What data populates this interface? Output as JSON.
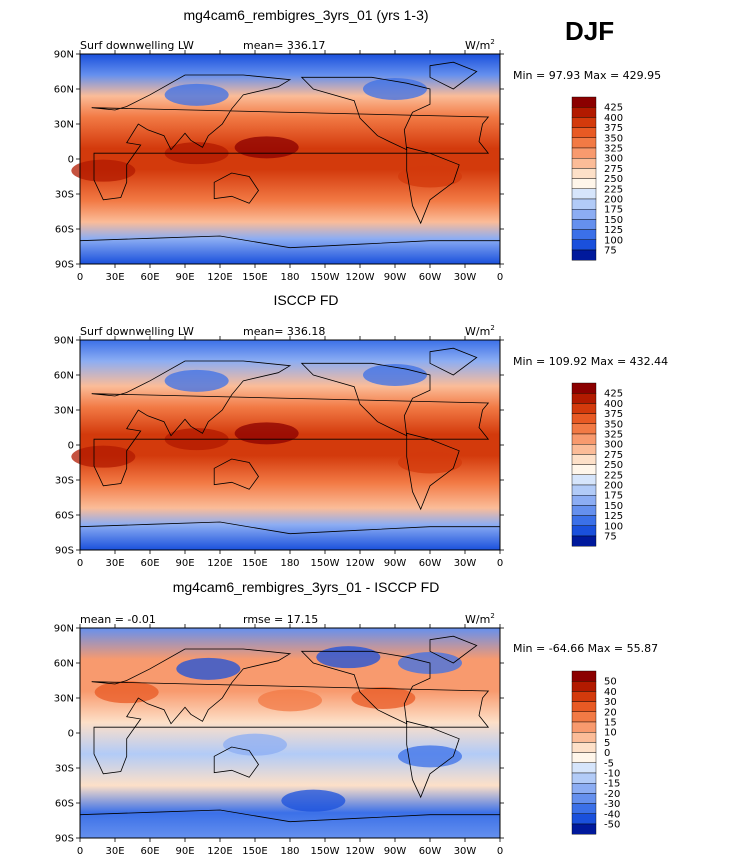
{
  "figure": {
    "season": "DJF",
    "lon_ticks": [
      "0",
      "30E",
      "60E",
      "90E",
      "120E",
      "150E",
      "180",
      "150W",
      "120W",
      "90W",
      "60W",
      "30W",
      "0"
    ],
    "lat_ticks": [
      "90N",
      "60N",
      "30N",
      "0",
      "30S",
      "60S",
      "90S"
    ]
  },
  "panels": [
    {
      "title": "mg4cam6_rembigres_3yrs_01 (yrs 1-3)",
      "left_label": "Surf downwelling LW",
      "center_label": "mean= 336.17",
      "units_label": "W/m",
      "units_sup": "2",
      "minmax_label": "Min =  97.93 Max = 429.95",
      "style": "field"
    },
    {
      "title": "ISCCP FD",
      "left_label": "Surf downwelling LW",
      "center_label": "mean= 336.18",
      "units_label": "W/m",
      "units_sup": "2",
      "minmax_label": "Min = 109.92 Max = 432.44",
      "style": "field"
    },
    {
      "title": "mg4cam6_rembigres_3yrs_01 - ISCCP FD",
      "left_label": "mean =  -0.01",
      "center_label": "rmse =  17.15",
      "units_label": "W/m",
      "units_sup": "2",
      "minmax_label": "Min = -64.66 Max =  55.87",
      "style": "diff"
    }
  ],
  "colorbars": [
    {
      "labels": [
        "425",
        "400",
        "375",
        "350",
        "325",
        "300",
        "275",
        "250",
        "225",
        "200",
        "175",
        "150",
        "125",
        "100",
        "75"
      ],
      "colors": [
        "#8b0000",
        "#b21a00",
        "#d33a0c",
        "#e85a24",
        "#f27a45",
        "#f89a6e",
        "#fbbc98",
        "#fde0c8",
        "#fff6ea",
        "#d6e5fb",
        "#b2cbf7",
        "#8cadf3",
        "#6590ee",
        "#3b70e8",
        "#1a50dc",
        "#00199c"
      ]
    },
    {
      "labels": [
        "425",
        "400",
        "375",
        "350",
        "325",
        "300",
        "275",
        "250",
        "225",
        "200",
        "175",
        "150",
        "125",
        "100",
        "75"
      ],
      "colors": [
        "#8b0000",
        "#b21a00",
        "#d33a0c",
        "#e85a24",
        "#f27a45",
        "#f89a6e",
        "#fbbc98",
        "#fde0c8",
        "#fff6ea",
        "#d6e5fb",
        "#b2cbf7",
        "#8cadf3",
        "#6590ee",
        "#3b70e8",
        "#1a50dc",
        "#00199c"
      ]
    },
    {
      "labels": [
        "50",
        "40",
        "30",
        "20",
        "15",
        "10",
        "5",
        "0",
        "-5",
        "-10",
        "-15",
        "-20",
        "-30",
        "-40",
        "-50"
      ],
      "colors": [
        "#8b0000",
        "#b21a00",
        "#d33a0c",
        "#e85a24",
        "#f27a45",
        "#f89a6e",
        "#fbbc98",
        "#fde0c8",
        "#fff6ea",
        "#d6e5fb",
        "#b2cbf7",
        "#8cadf3",
        "#6590ee",
        "#3b70e8",
        "#1a50dc",
        "#00199c"
      ]
    }
  ],
  "chart_data": [
    {
      "type": "heatmap",
      "title": "mg4cam6_rembigres_3yrs_01 (yrs 1-3)",
      "variable": "Surf downwelling LW",
      "units": "W/m2",
      "mean": 336.17,
      "min": 97.93,
      "max": 429.95,
      "x_range": [
        0,
        360
      ],
      "y_range": [
        -90,
        90
      ],
      "levels": [
        75,
        100,
        125,
        150,
        175,
        200,
        225,
        250,
        275,
        300,
        325,
        350,
        375,
        400,
        425
      ]
    },
    {
      "type": "heatmap",
      "title": "ISCCP FD",
      "variable": "Surf downwelling LW",
      "units": "W/m2",
      "mean": 336.18,
      "min": 109.92,
      "max": 432.44,
      "x_range": [
        0,
        360
      ],
      "y_range": [
        -90,
        90
      ],
      "levels": [
        75,
        100,
        125,
        150,
        175,
        200,
        225,
        250,
        275,
        300,
        325,
        350,
        375,
        400,
        425
      ]
    },
    {
      "type": "heatmap",
      "title": "mg4cam6_rembigres_3yrs_01 - ISCCP FD",
      "units": "W/m2",
      "mean": -0.01,
      "rmse": 17.15,
      "min": -64.66,
      "max": 55.87,
      "x_range": [
        0,
        360
      ],
      "y_range": [
        -90,
        90
      ],
      "levels": [
        -50,
        -40,
        -30,
        -20,
        -15,
        -10,
        -5,
        0,
        5,
        10,
        15,
        20,
        30,
        40,
        50
      ]
    }
  ]
}
